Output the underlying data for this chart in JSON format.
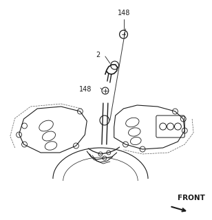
{
  "bg_color": "#ffffff",
  "line_color": "#1a1a1a",
  "dash_color": "#555555",
  "gray_color": "#888888"
}
